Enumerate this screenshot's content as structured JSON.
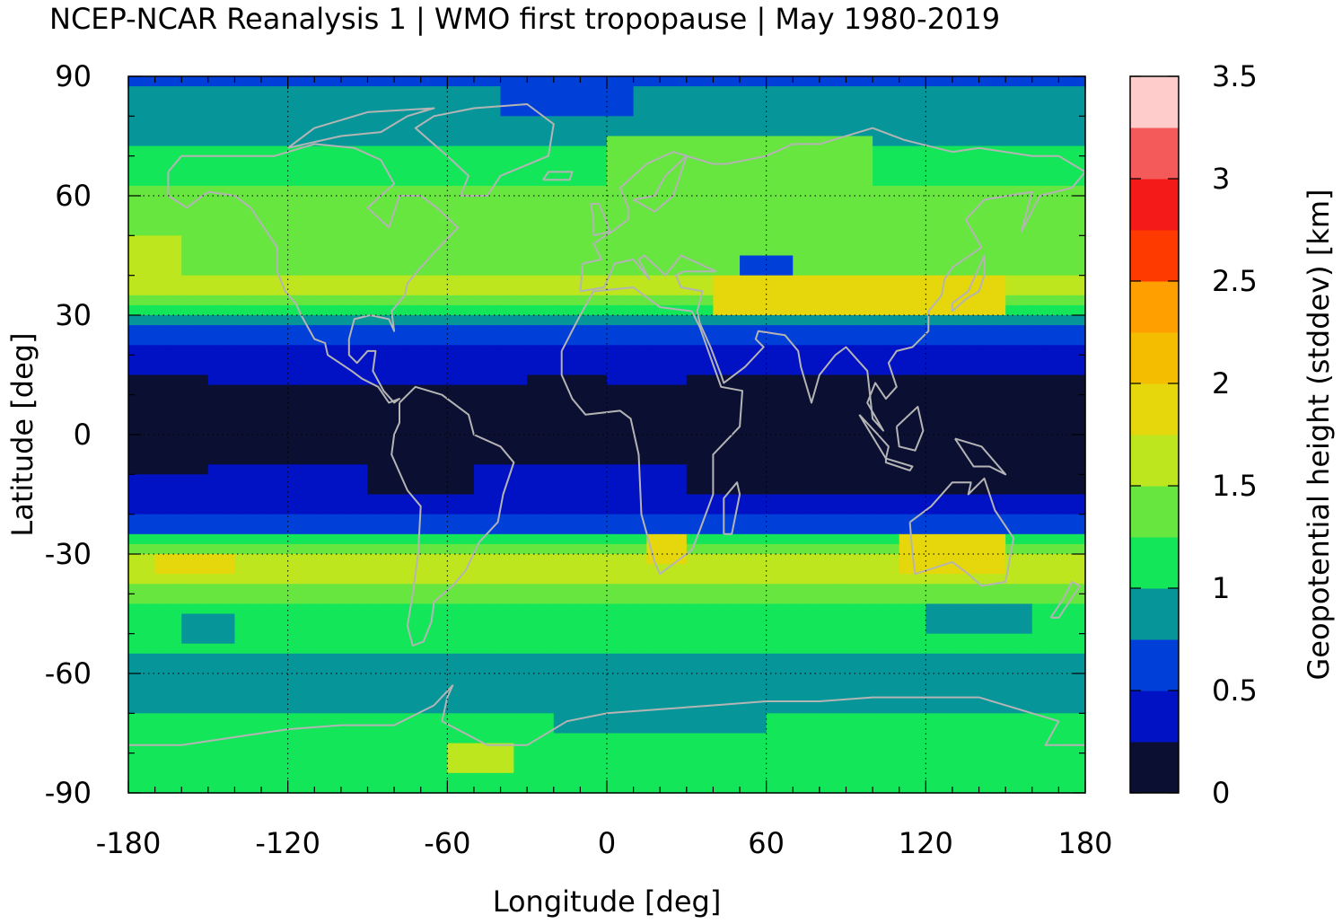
{
  "chart_data": {
    "type": "heatmap",
    "title": "NCEP-NCAR Reanalysis 1 | WMO first tropopause | May 1980-2019",
    "xlabel": "Longitude [deg]",
    "ylabel": "Latitude [deg]",
    "colorbar_label": "Geopotential height (stddev) [km]",
    "xlim": [
      -180,
      180
    ],
    "ylim": [
      -90,
      90
    ],
    "x_ticks": [
      -180,
      -120,
      -60,
      0,
      60,
      120,
      180
    ],
    "x_tick_labels": [
      "-180",
      "-120",
      "-60",
      "0",
      "60",
      "120",
      "180"
    ],
    "y_ticks": [
      90,
      60,
      30,
      0,
      -30,
      -60,
      -90
    ],
    "y_tick_labels": [
      "90",
      "60",
      "30",
      "0",
      "-30",
      "-60",
      "-90"
    ],
    "grid": true,
    "colorbar": {
      "range": [
        0,
        3.5
      ],
      "ticks": [
        0,
        0.5,
        1,
        1.5,
        2,
        2.5,
        3,
        3.5
      ],
      "tick_labels": [
        "0",
        "0.5",
        "1",
        "1.5",
        "2",
        "2.5",
        "3",
        "3.5"
      ],
      "levels": [
        0,
        0.25,
        0.5,
        0.75,
        1.0,
        1.25,
        1.5,
        1.75,
        2.0,
        2.25,
        2.5,
        2.75,
        3.0,
        3.25,
        3.5
      ],
      "colors": [
        "#0b1033",
        "#0012c4",
        "#0040d8",
        "#06969a",
        "#14e65a",
        "#66e63e",
        "#bde61e",
        "#e6d70c",
        "#f5bd00",
        "#ffa000",
        "#ff3a00",
        "#f51a1a",
        "#f55a5a",
        "#ffcccc"
      ]
    },
    "zonal_profile": {
      "description_units": "latitude deg -> stddev km",
      "latitudes": [
        90,
        85,
        80,
        75,
        70,
        65,
        60,
        55,
        50,
        45,
        40,
        35,
        30,
        25,
        20,
        15,
        10,
        5,
        0,
        -5,
        -10,
        -15,
        -20,
        -25,
        -30,
        -35,
        -40,
        -45,
        -50,
        -55,
        -60,
        -65,
        -70,
        -75,
        -80,
        -85,
        -90
      ],
      "values": [
        0.6,
        0.9,
        0.9,
        0.95,
        1.1,
        1.2,
        1.3,
        1.4,
        1.4,
        1.45,
        1.5,
        1.55,
        1.1,
        0.6,
        0.45,
        0.3,
        0.2,
        0.2,
        0.22,
        0.24,
        0.26,
        0.3,
        0.45,
        0.8,
        1.7,
        1.6,
        1.3,
        1.15,
        1.05,
        1.0,
        0.95,
        0.95,
        1.0,
        1.15,
        1.25,
        1.2,
        1.05
      ]
    },
    "regional_features": [
      {
        "lon": [
          -180,
          -160
        ],
        "lat": [
          40,
          50
        ],
        "value": 1.6
      },
      {
        "lon": [
          40,
          150
        ],
        "lat": [
          30,
          40
        ],
        "value": 1.9
      },
      {
        "lon": [
          50,
          70
        ],
        "lat": [
          40,
          45
        ],
        "value": 0.5
      },
      {
        "lon": [
          -180,
          -150
        ],
        "lat": [
          -10,
          15
        ],
        "value": 0.1
      },
      {
        "lon": [
          -90,
          -50
        ],
        "lat": [
          -15,
          5
        ],
        "value": 0.1
      },
      {
        "lon": [
          30,
          180
        ],
        "lat": [
          -15,
          15
        ],
        "value": 0.1
      },
      {
        "lon": [
          -30,
          0
        ],
        "lat": [
          5,
          15
        ],
        "value": 0.1
      },
      {
        "lon": [
          110,
          150
        ],
        "lat": [
          -35,
          -25
        ],
        "value": 1.9
      },
      {
        "lon": [
          -170,
          -140
        ],
        "lat": [
          -35,
          -30
        ],
        "value": 1.9
      },
      {
        "lon": [
          15,
          30
        ],
        "lat": [
          -32,
          -25
        ],
        "value": 1.9
      },
      {
        "lon": [
          -60,
          -35
        ],
        "lat": [
          -85,
          -78
        ],
        "value": 1.6
      },
      {
        "lon": [
          120,
          160
        ],
        "lat": [
          -50,
          -42
        ],
        "value": 0.9
      },
      {
        "lon": [
          -160,
          -140
        ],
        "lat": [
          -52,
          -45
        ],
        "value": 0.9
      },
      {
        "lon": [
          -90,
          -40
        ],
        "lat": [
          -62,
          -55
        ],
        "value": 0.9
      },
      {
        "lon": [
          -20,
          60
        ],
        "lat": [
          -75,
          -58
        ],
        "value": 0.9
      },
      {
        "lon": [
          -40,
          10
        ],
        "lat": [
          80,
          90
        ],
        "value": 0.6
      },
      {
        "lon": [
          0,
          100
        ],
        "lat": [
          60,
          75
        ],
        "value": 1.3
      }
    ],
    "overlay": "coastlines"
  }
}
